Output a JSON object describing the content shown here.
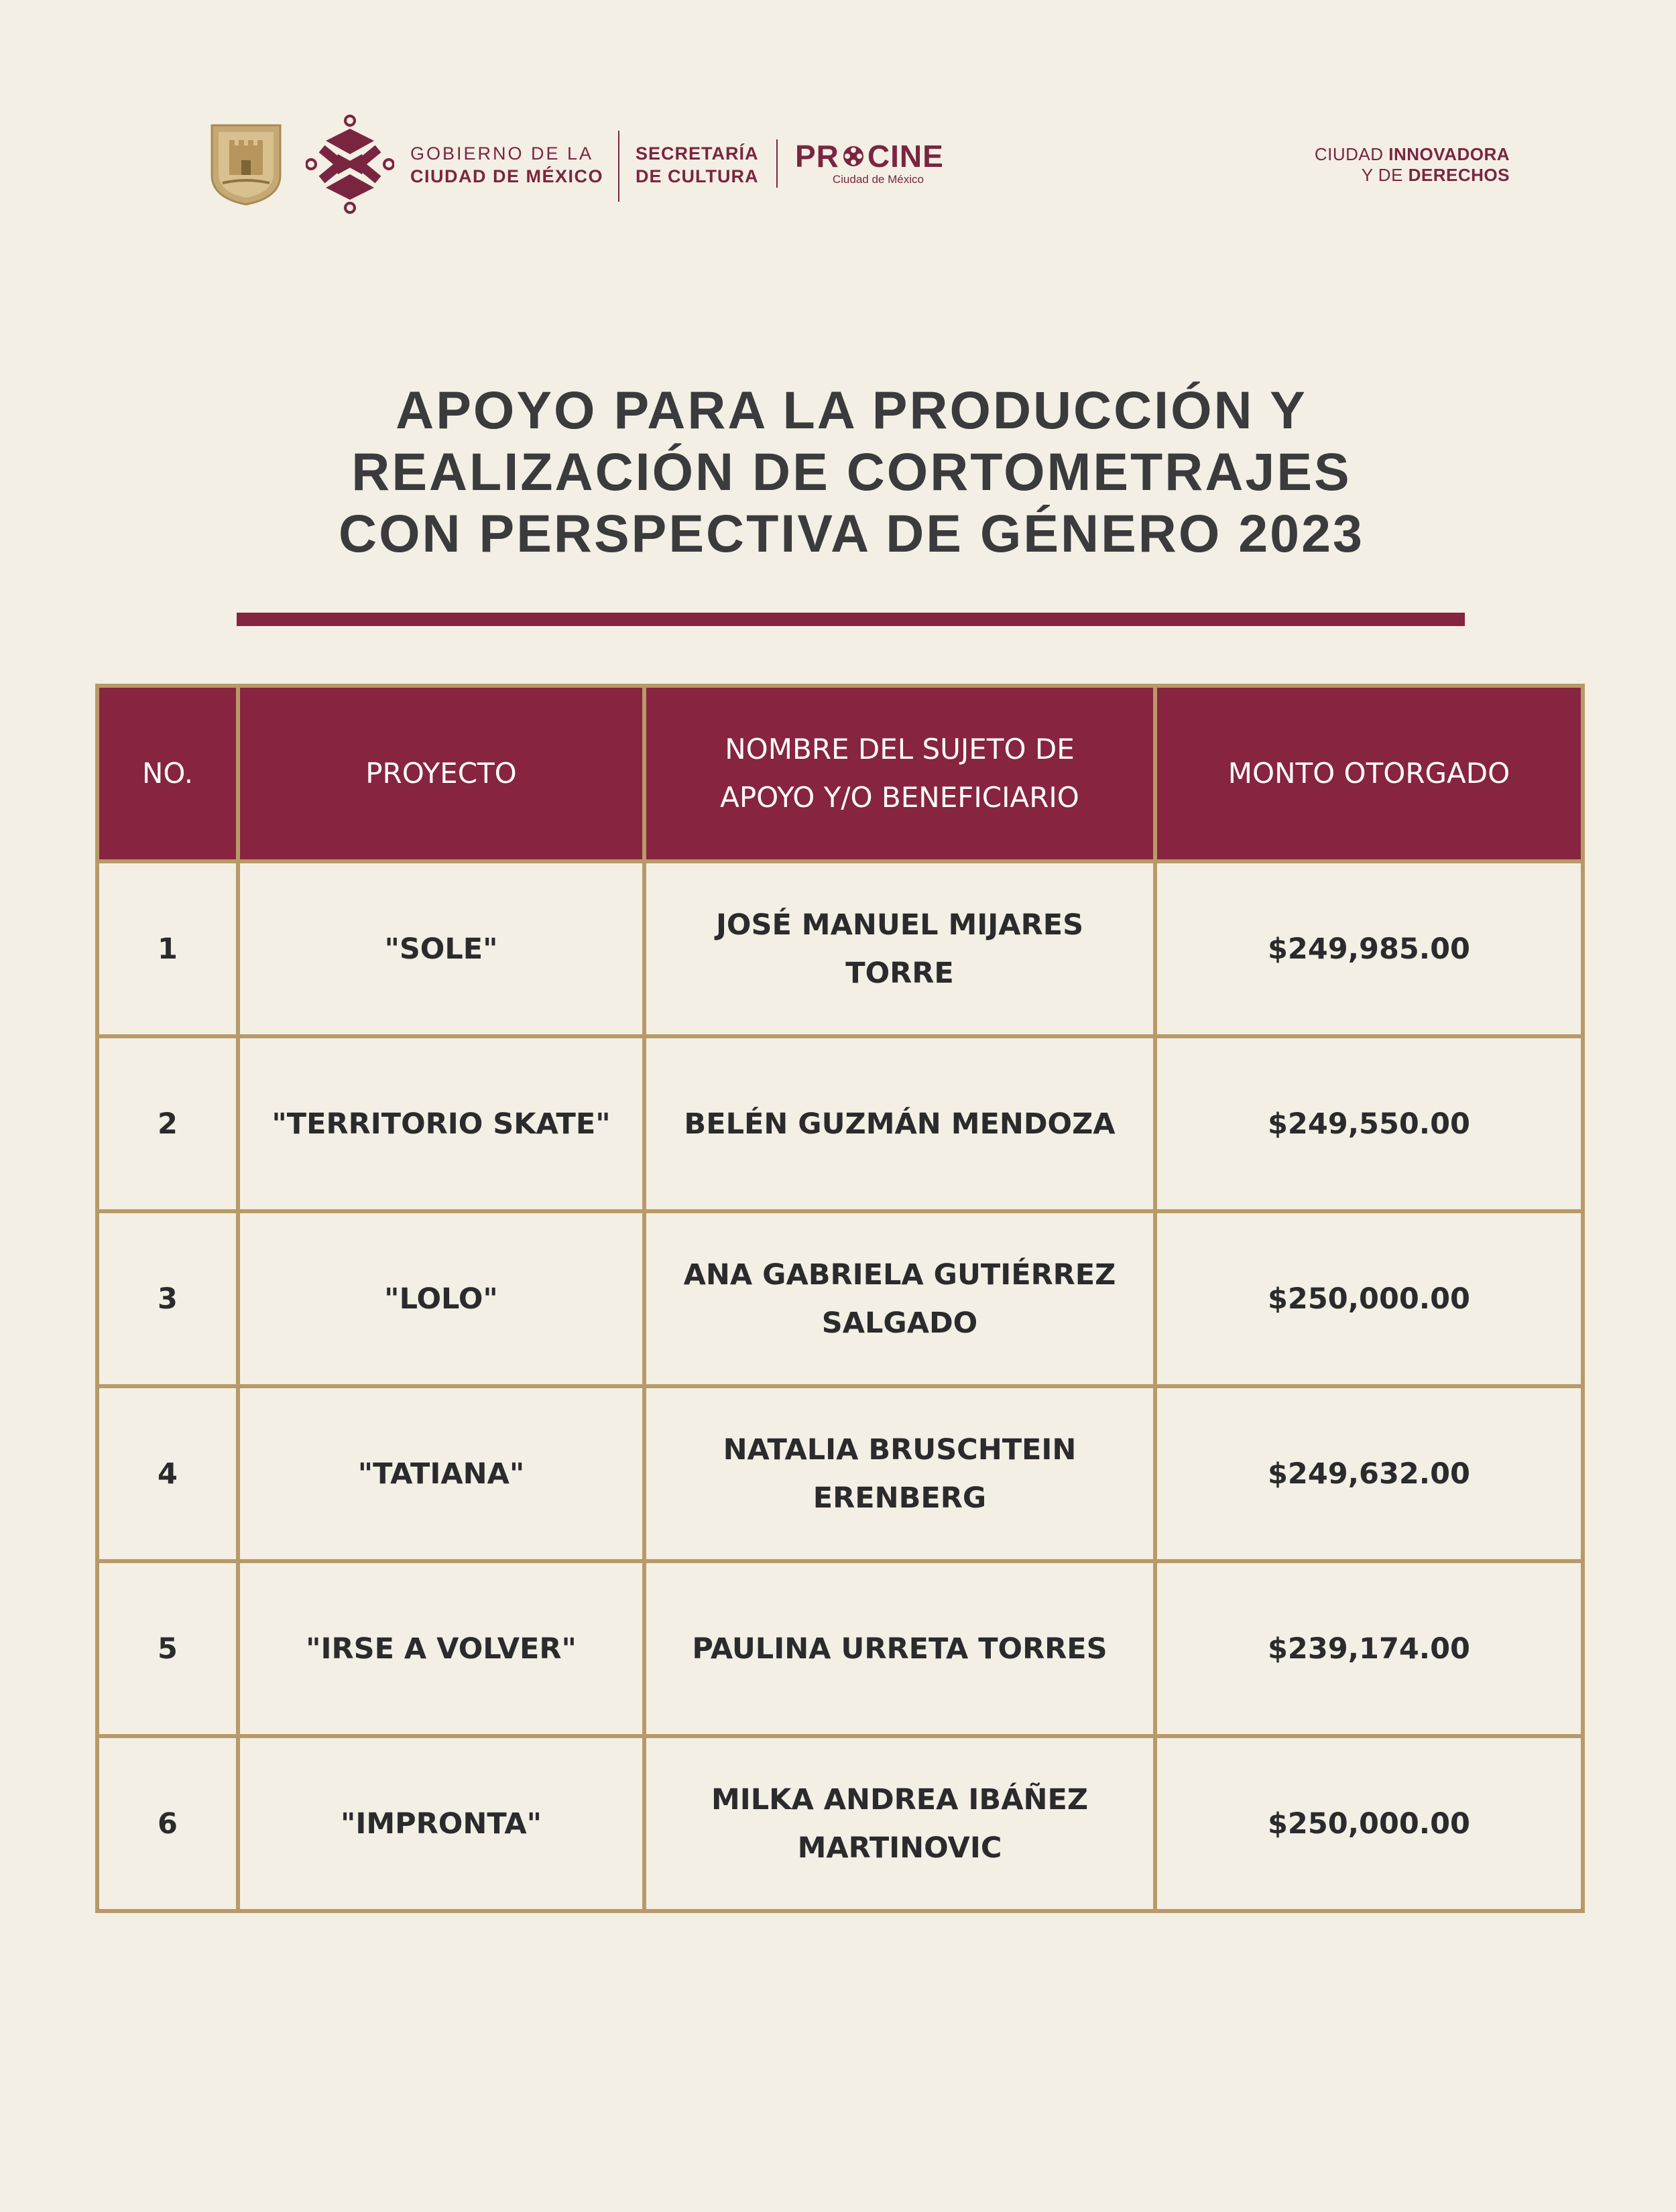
{
  "header": {
    "gob_line1": "GOBIERNO DE LA",
    "gob_line2": "CIUDAD DE MÉXICO",
    "sec_line1": "SECRETARÍA",
    "sec_line2": "DE CULTURA",
    "procine_a": "PR",
    "procine_b": "CINE",
    "procine_sub": "Ciudad de México",
    "slogan_ciudad": "CIUDAD ",
    "slogan_innovadora": "INNOVADORA",
    "slogan_yde": "Y DE ",
    "slogan_derechos": "DERECHOS"
  },
  "title": {
    "line1": "APOYO PARA LA PRODUCCIÓN Y",
    "line2": "REALIZACIÓN DE CORTOMETRAJES",
    "line3": "CON PERSPECTIVA DE GÉNERO 2023"
  },
  "table": {
    "headers": {
      "no": "NO.",
      "proyecto": "PROYECTO",
      "nombre_line1": "NOMBRE DEL SUJETO DE",
      "nombre_line2": "APOYO Y/O BENEFICIARIO",
      "monto": "MONTO OTORGADO"
    },
    "rows": [
      {
        "no": "1",
        "proyecto": "\"SOLE\"",
        "nombre_line1": "JOSÉ MANUEL MIJARES",
        "nombre_line2": "TORRE",
        "monto": "$249,985.00"
      },
      {
        "no": "2",
        "proyecto": "\"TERRITORIO SKATE\"",
        "nombre_line1": "BELÉN GUZMÁN MENDOZA",
        "nombre_line2": "",
        "monto": "$249,550.00"
      },
      {
        "no": "3",
        "proyecto": "\"LOLO\"",
        "nombre_line1": "ANA GABRIELA GUTIÉRREZ",
        "nombre_line2": "SALGADO",
        "monto": "$250,000.00"
      },
      {
        "no": "4",
        "proyecto": "\"TATIANA\"",
        "nombre_line1": "NATALIA BRUSCHTEIN",
        "nombre_line2": "ERENBERG",
        "monto": "$249,632.00"
      },
      {
        "no": "5",
        "proyecto": "\"IRSE A VOLVER\"",
        "nombre_line1": "PAULINA URRETA TORRES",
        "nombre_line2": "",
        "monto": "$239,174.00"
      },
      {
        "no": "6",
        "proyecto": "\"IMPRONTA\"",
        "nombre_line1": "MILKA ANDREA IBÁÑEZ",
        "nombre_line2": "MARTINOVIC",
        "monto": "$250,000.00"
      }
    ]
  },
  "colors": {
    "background": "#f3efe5",
    "maroon": "#87243f",
    "gold_border": "#b89a68",
    "text": "#3a393b"
  },
  "icons": [
    "coat-of-arms-icon",
    "cdmx-knot-icon",
    "film-reel-icon"
  ]
}
